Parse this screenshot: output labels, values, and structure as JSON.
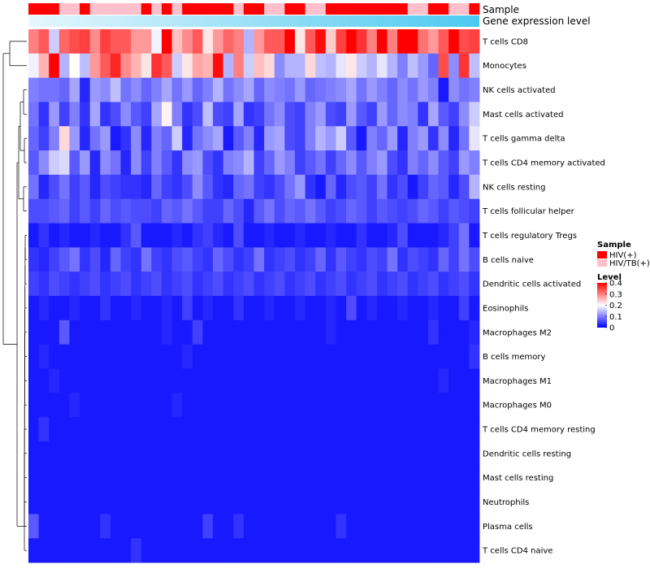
{
  "chart_data": {
    "type": "heatmap",
    "annotation_tracks": [
      {
        "name": "Sample"
      },
      {
        "name": "Gene expression level"
      }
    ],
    "rows": [
      "T cells CD8",
      "Monocytes",
      "NK cells activated",
      "Mast cells activated",
      "T cells gamma delta",
      "T cells CD4 memory activated",
      "NK cells resting",
      "T cells follicular helper",
      "T cells regulatory  Tregs",
      "B cells naive",
      "Dendritic cells activated",
      "Eosinophils",
      "Macrophages M2",
      "B cells memory",
      "Macrophages M1",
      "Macrophages M0",
      "T cells CD4 memory resting",
      "Dendritic cells resting",
      "Mast cells resting",
      "Neutrophils",
      "Plasma cells",
      "T cells CD4 naive"
    ],
    "n_samples": 44,
    "sample_groups": [
      "HIV(+)",
      "HIV(+)",
      "HIV(+)",
      "HIV/TB(+)",
      "HIV/TB(+)",
      "HIV(+)",
      "HIV/TB(+)",
      "HIV/TB(+)",
      "HIV/TB(+)",
      "HIV/TB(+)",
      "HIV/TB(+)",
      "HIV(+)",
      "HIV/TB(+)",
      "HIV(+)",
      "HIV/TB(+)",
      "HIV(+)",
      "HIV(+)",
      "HIV(+)",
      "HIV(+)",
      "HIV(+)",
      "HIV/TB(+)",
      "HIV(+)",
      "HIV(+)",
      "HIV/TB(+)",
      "HIV/TB(+)",
      "HIV(+)",
      "HIV(+)",
      "HIV/TB(+)",
      "HIV/TB(+)",
      "HIV(+)",
      "HIV(+)",
      "HIV(+)",
      "HIV(+)",
      "HIV(+)",
      "HIV(+)",
      "HIV(+)",
      "HIV(+)",
      "HIV/TB(+)",
      "HIV/TB(+)",
      "HIV(+)",
      "HIV(+)",
      "HIV/TB(+)",
      "HIV/TB(+)",
      "HIV(+)"
    ],
    "values": [
      [
        0.3,
        0.33,
        0.16,
        0.32,
        0.34,
        0.35,
        0.29,
        0.35,
        0.33,
        0.33,
        0.28,
        0.28,
        0.19,
        0.4,
        0.25,
        0.29,
        0.33,
        0.22,
        0.28,
        0.32,
        0.3,
        0.14,
        0.28,
        0.33,
        0.33,
        0.4,
        0.22,
        0.33,
        0.39,
        0.24,
        0.35,
        0.4,
        0.36,
        0.3,
        0.4,
        0.3,
        0.4,
        0.4,
        0.31,
        0.28,
        0.33,
        0.4,
        0.34,
        0.35
      ],
      [
        0.19,
        0.26,
        0.4,
        0.14,
        0.2,
        0.15,
        0.28,
        0.33,
        0.37,
        0.29,
        0.26,
        0.22,
        0.36,
        0.33,
        0.16,
        0.22,
        0.27,
        0.26,
        0.39,
        0.14,
        0.3,
        0.16,
        0.25,
        0.23,
        0.11,
        0.14,
        0.14,
        0.23,
        0.15,
        0.14,
        0.18,
        0.22,
        0.16,
        0.14,
        0.18,
        0.14,
        0.1,
        0.15,
        0.12,
        0.08,
        0.34,
        0.11,
        0.36,
        0.15
      ],
      [
        0.1,
        0.09,
        0.09,
        0.08,
        0.13,
        0.03,
        0.12,
        0.11,
        0.15,
        0.09,
        0.11,
        0.08,
        0.1,
        0.13,
        0.09,
        0.12,
        0.08,
        0.1,
        0.14,
        0.09,
        0.11,
        0.13,
        0.08,
        0.11,
        0.1,
        0.09,
        0.12,
        0.08,
        0.09,
        0.1,
        0.11,
        0.13,
        0.09,
        0.12,
        0.1,
        0.08,
        0.11,
        0.09,
        0.12,
        0.1,
        0.02,
        0.11,
        0.09,
        0.1
      ],
      [
        0.09,
        0.04,
        0.12,
        0.05,
        0.1,
        0.04,
        0.13,
        0.04,
        0.06,
        0.11,
        0.07,
        0.05,
        0.13,
        0.21,
        0.1,
        0.04,
        0.06,
        0.15,
        0.06,
        0.05,
        0.13,
        0.04,
        0.05,
        0.09,
        0.11,
        0.06,
        0.05,
        0.1,
        0.12,
        0.06,
        0.05,
        0.12,
        0.07,
        0.05,
        0.12,
        0.08,
        0.11,
        0.1,
        0.04,
        0.13,
        0.07,
        0.05,
        0.11,
        0.16
      ],
      [
        0.08,
        0.05,
        0.1,
        0.23,
        0.12,
        0.03,
        0.09,
        0.12,
        0.02,
        0.04,
        0.11,
        0.03,
        0.1,
        0.08,
        0.16,
        0.03,
        0.09,
        0.11,
        0.13,
        0.02,
        0.07,
        0.1,
        0.03,
        0.12,
        0.13,
        0.06,
        0.05,
        0.1,
        0.14,
        0.12,
        0.16,
        0.07,
        0.02,
        0.1,
        0.08,
        0.12,
        0.03,
        0.1,
        0.12,
        0.04,
        0.11,
        0.03,
        0.09,
        0.18
      ],
      [
        0.07,
        0.11,
        0.16,
        0.17,
        0.07,
        0.12,
        0.03,
        0.11,
        0.09,
        0.03,
        0.11,
        0.05,
        0.1,
        0.07,
        0.04,
        0.11,
        0.12,
        0.06,
        0.04,
        0.1,
        0.11,
        0.14,
        0.05,
        0.08,
        0.12,
        0.1,
        0.05,
        0.07,
        0.09,
        0.05,
        0.08,
        0.11,
        0.07,
        0.1,
        0.12,
        0.06,
        0.04,
        0.1,
        0.08,
        0.11,
        0.07,
        0.05,
        0.12,
        0.1
      ],
      [
        0.09,
        0.03,
        0.06,
        0.09,
        0.05,
        0.07,
        0.03,
        0.06,
        0.05,
        0.04,
        0.04,
        0.03,
        0.08,
        0.05,
        0.04,
        0.06,
        0.11,
        0.07,
        0.04,
        0.03,
        0.08,
        0.09,
        0.05,
        0.04,
        0.06,
        0.09,
        0.12,
        0.04,
        0.02,
        0.08,
        0.03,
        0.06,
        0.07,
        0.05,
        0.09,
        0.04,
        0.06,
        0.02,
        0.05,
        0.08,
        0.07,
        0.03,
        0.06,
        0.14
      ],
      [
        0.06,
        0.06,
        0.07,
        0.08,
        0.05,
        0.07,
        0.05,
        0.08,
        0.06,
        0.07,
        0.06,
        0.06,
        0.05,
        0.08,
        0.07,
        0.09,
        0.07,
        0.05,
        0.05,
        0.08,
        0.06,
        0.03,
        0.07,
        0.09,
        0.06,
        0.08,
        0.07,
        0.09,
        0.07,
        0.05,
        0.06,
        0.08,
        0.07,
        0.05,
        0.07,
        0.06,
        0.05,
        0.06,
        0.08,
        0.07,
        0.05,
        0.07,
        0.06,
        0.05
      ],
      [
        0.02,
        0.04,
        0.02,
        0.03,
        0.02,
        0.02,
        0.03,
        0.02,
        0.02,
        0.04,
        0.07,
        0.02,
        0.02,
        0.02,
        0.03,
        0.02,
        0.04,
        0.05,
        0.03,
        0.02,
        0.06,
        0.02,
        0.02,
        0.03,
        0.02,
        0.02,
        0.03,
        0.02,
        0.02,
        0.03,
        0.02,
        0.02,
        0.04,
        0.02,
        0.02,
        0.03,
        0.06,
        0.02,
        0.02,
        0.02,
        0.03,
        0.05,
        0.09,
        0.02
      ],
      [
        0.04,
        0.03,
        0.05,
        0.07,
        0.09,
        0.04,
        0.06,
        0.03,
        0.08,
        0.05,
        0.04,
        0.09,
        0.05,
        0.04,
        0.06,
        0.07,
        0.05,
        0.04,
        0.08,
        0.06,
        0.04,
        0.05,
        0.09,
        0.04,
        0.05,
        0.06,
        0.04,
        0.05,
        0.08,
        0.04,
        0.07,
        0.05,
        0.04,
        0.06,
        0.05,
        0.09,
        0.04,
        0.06,
        0.05,
        0.04,
        0.08,
        0.05,
        0.09,
        0.06
      ],
      [
        0.05,
        0.04,
        0.06,
        0.05,
        0.04,
        0.05,
        0.06,
        0.04,
        0.05,
        0.06,
        0.04,
        0.05,
        0.06,
        0.04,
        0.05,
        0.06,
        0.04,
        0.05,
        0.06,
        0.04,
        0.05,
        0.06,
        0.04,
        0.05,
        0.06,
        0.04,
        0.05,
        0.06,
        0.04,
        0.05,
        0.06,
        0.04,
        0.05,
        0.06,
        0.04,
        0.05,
        0.06,
        0.04,
        0.05,
        0.06,
        0.04,
        0.05,
        0.06,
        0.04
      ],
      [
        0.02,
        0.03,
        0.02,
        0.02,
        0.03,
        0.02,
        0.02,
        0.04,
        0.02,
        0.02,
        0.03,
        0.02,
        0.02,
        0.03,
        0.02,
        0.05,
        0.02,
        0.03,
        0.02,
        0.02,
        0.04,
        0.02,
        0.02,
        0.03,
        0.02,
        0.02,
        0.03,
        0.02,
        0.02,
        0.03,
        0.02,
        0.06,
        0.02,
        0.03,
        0.02,
        0.02,
        0.03,
        0.02,
        0.02,
        0.03,
        0.02,
        0.02,
        0.05,
        0.02
      ],
      [
        0.02,
        0.02,
        0.02,
        0.07,
        0.02,
        0.02,
        0.02,
        0.02,
        0.02,
        0.02,
        0.02,
        0.02,
        0.02,
        0.03,
        0.02,
        0.02,
        0.05,
        0.02,
        0.02,
        0.02,
        0.02,
        0.02,
        0.02,
        0.02,
        0.02,
        0.02,
        0.02,
        0.02,
        0.02,
        0.03,
        0.02,
        0.02,
        0.02,
        0.02,
        0.02,
        0.02,
        0.02,
        0.02,
        0.02,
        0.04,
        0.02,
        0.02,
        0.02,
        0.03
      ],
      [
        0.02,
        0.03,
        0.02,
        0.02,
        0.02,
        0.02,
        0.02,
        0.02,
        0.02,
        0.02,
        0.02,
        0.02,
        0.02,
        0.02,
        0.02,
        0.03,
        0.02,
        0.02,
        0.02,
        0.02,
        0.02,
        0.02,
        0.02,
        0.02,
        0.02,
        0.02,
        0.02,
        0.02,
        0.02,
        0.02,
        0.02,
        0.02,
        0.02,
        0.02,
        0.02,
        0.02,
        0.02,
        0.02,
        0.02,
        0.02,
        0.02,
        0.02,
        0.02,
        0.04
      ],
      [
        0.02,
        0.02,
        0.03,
        0.02,
        0.02,
        0.02,
        0.02,
        0.02,
        0.02,
        0.02,
        0.02,
        0.02,
        0.02,
        0.02,
        0.02,
        0.02,
        0.02,
        0.02,
        0.02,
        0.02,
        0.02,
        0.02,
        0.02,
        0.02,
        0.02,
        0.02,
        0.02,
        0.02,
        0.02,
        0.02,
        0.02,
        0.02,
        0.02,
        0.02,
        0.02,
        0.02,
        0.02,
        0.02,
        0.02,
        0.02,
        0.03,
        0.02,
        0.02,
        0.02
      ],
      [
        0.02,
        0.02,
        0.02,
        0.02,
        0.03,
        0.02,
        0.02,
        0.02,
        0.02,
        0.02,
        0.02,
        0.02,
        0.02,
        0.02,
        0.03,
        0.02,
        0.02,
        0.02,
        0.02,
        0.02,
        0.02,
        0.02,
        0.02,
        0.02,
        0.02,
        0.02,
        0.02,
        0.02,
        0.02,
        0.02,
        0.02,
        0.02,
        0.02,
        0.02,
        0.02,
        0.02,
        0.02,
        0.02,
        0.02,
        0.02,
        0.02,
        0.02,
        0.02,
        0.02
      ],
      [
        0.02,
        0.04,
        0.02,
        0.02,
        0.02,
        0.02,
        0.02,
        0.02,
        0.02,
        0.02,
        0.02,
        0.02,
        0.02,
        0.02,
        0.02,
        0.02,
        0.02,
        0.02,
        0.02,
        0.02,
        0.02,
        0.02,
        0.02,
        0.02,
        0.02,
        0.02,
        0.02,
        0.02,
        0.02,
        0.02,
        0.02,
        0.02,
        0.02,
        0.02,
        0.02,
        0.02,
        0.02,
        0.02,
        0.02,
        0.02,
        0.02,
        0.02,
        0.02,
        0.02
      ],
      [
        0.02,
        0.02,
        0.02,
        0.02,
        0.02,
        0.02,
        0.02,
        0.02,
        0.02,
        0.02,
        0.02,
        0.02,
        0.02,
        0.02,
        0.02,
        0.02,
        0.02,
        0.02,
        0.02,
        0.02,
        0.02,
        0.02,
        0.02,
        0.02,
        0.02,
        0.02,
        0.02,
        0.02,
        0.02,
        0.02,
        0.02,
        0.02,
        0.02,
        0.02,
        0.02,
        0.02,
        0.02,
        0.02,
        0.02,
        0.02,
        0.02,
        0.02,
        0.02,
        0.02
      ],
      [
        0.02,
        0.02,
        0.02,
        0.02,
        0.02,
        0.02,
        0.02,
        0.02,
        0.02,
        0.02,
        0.02,
        0.02,
        0.02,
        0.02,
        0.02,
        0.02,
        0.02,
        0.02,
        0.02,
        0.02,
        0.02,
        0.02,
        0.02,
        0.02,
        0.02,
        0.02,
        0.02,
        0.02,
        0.02,
        0.02,
        0.02,
        0.02,
        0.02,
        0.02,
        0.02,
        0.02,
        0.02,
        0.02,
        0.02,
        0.02,
        0.02,
        0.02,
        0.02,
        0.02
      ],
      [
        0.02,
        0.02,
        0.02,
        0.02,
        0.02,
        0.02,
        0.02,
        0.02,
        0.02,
        0.02,
        0.02,
        0.02,
        0.02,
        0.02,
        0.02,
        0.02,
        0.02,
        0.02,
        0.02,
        0.02,
        0.02,
        0.02,
        0.02,
        0.02,
        0.02,
        0.02,
        0.02,
        0.02,
        0.02,
        0.02,
        0.02,
        0.02,
        0.02,
        0.02,
        0.02,
        0.02,
        0.02,
        0.02,
        0.02,
        0.02,
        0.02,
        0.02,
        0.02,
        0.02
      ],
      [
        0.07,
        0.02,
        0.02,
        0.02,
        0.02,
        0.02,
        0.02,
        0.04,
        0.02,
        0.02,
        0.02,
        0.02,
        0.02,
        0.02,
        0.02,
        0.02,
        0.02,
        0.05,
        0.02,
        0.02,
        0.04,
        0.02,
        0.02,
        0.02,
        0.02,
        0.02,
        0.02,
        0.02,
        0.02,
        0.02,
        0.04,
        0.02,
        0.02,
        0.02,
        0.02,
        0.02,
        0.02,
        0.02,
        0.02,
        0.02,
        0.02,
        0.02,
        0.02,
        0.02
      ],
      [
        0.02,
        0.02,
        0.02,
        0.02,
        0.02,
        0.02,
        0.02,
        0.02,
        0.02,
        0.02,
        0.04,
        0.02,
        0.02,
        0.02,
        0.02,
        0.02,
        0.02,
        0.02,
        0.02,
        0.02,
        0.02,
        0.02,
        0.02,
        0.02,
        0.02,
        0.02,
        0.02,
        0.02,
        0.02,
        0.02,
        0.02,
        0.02,
        0.02,
        0.02,
        0.02,
        0.02,
        0.02,
        0.02,
        0.02,
        0.02,
        0.02,
        0.02,
        0.02,
        0.02
      ]
    ],
    "value_range": [
      0,
      0.4
    ],
    "color_scale": {
      "low": "#0000ff",
      "mid": "#ffffff",
      "high": "#ff0000",
      "mid_value": 0.2
    },
    "legend": {
      "sample_title": "Sample",
      "sample_entries": [
        {
          "label": "HIV(+)",
          "color": "#ff0000"
        },
        {
          "label": "HIV/TB(+)",
          "color": "#ffc0cb"
        }
      ],
      "level_title": "Level",
      "level_ticks": [
        "0.4",
        "0.3",
        "0.2",
        "0.1",
        "0"
      ],
      "level_tick_values": [
        0.4,
        0.3,
        0.2,
        0.1,
        0
      ]
    },
    "expression_gradient": {
      "start": "#e6f7fd",
      "end": "#4cc9f0"
    },
    "row_dendrogram": true,
    "grid": false
  }
}
